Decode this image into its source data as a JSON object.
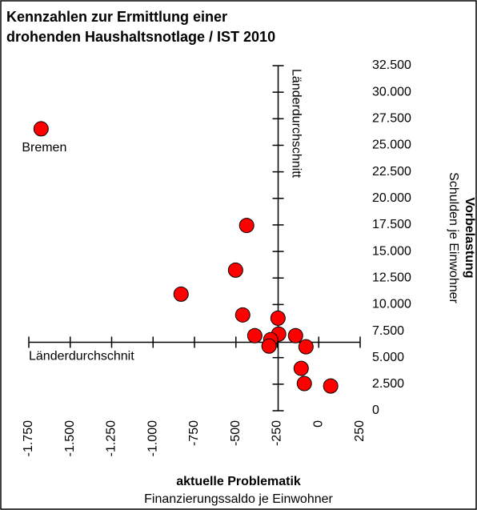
{
  "chart_data": {
    "type": "scatter",
    "title": [
      "Kennzahlen zur Ermittlung einer",
      "drohenden Haushaltsnotlage / IST 2010"
    ],
    "x_label": [
      "aktuelle Problematik",
      "Finanzierungssaldo je Einwohner"
    ],
    "y_label": [
      "Vorbelastung",
      "Schulden je Einwohner"
    ],
    "x": [
      -1676,
      -435,
      -502,
      -831,
      -459,
      -246,
      -386,
      -242,
      -290,
      -140,
      -77,
      -300,
      -106,
      -87,
      72
    ],
    "y": [
      26550,
      17450,
      13240,
      10980,
      9025,
      8720,
      7070,
      7220,
      6690,
      7070,
      6020,
      6090,
      3990,
      2560,
      2330
    ],
    "color": "#ff0000",
    "annotations": [
      {
        "text": "Bremen",
        "point": 0
      }
    ],
    "reference_lines": [
      {
        "axis": "x",
        "value": -245,
        "label": "Länderdurchschnitt"
      },
      {
        "axis": "y",
        "value": 6450,
        "label": "Länderdurchschnit"
      }
    ],
    "xlim": [
      -1750,
      250
    ],
    "ylim": [
      0,
      32500
    ],
    "xticks": [
      {
        "value": -1750,
        "label": "-1.750"
      },
      {
        "value": -1500,
        "label": "-1.500"
      },
      {
        "value": -1250,
        "label": "-1.250"
      },
      {
        "value": -1000,
        "label": "-1.000"
      },
      -750,
      -500,
      -250,
      0,
      250
    ],
    "yticks": [
      0,
      {
        "value": 2500,
        "label": "2.500"
      },
      {
        "value": 5000,
        "label": "5.000"
      },
      {
        "value": 7500,
        "label": "7.500"
      },
      {
        "value": 10000,
        "label": "10.000"
      },
      {
        "value": 12500,
        "label": "12.500"
      },
      {
        "value": 15000,
        "label": "15.000"
      },
      {
        "value": 17500,
        "label": "17.500"
      },
      {
        "value": 20000,
        "label": "20.000"
      },
      {
        "value": 22500,
        "label": "22.500"
      },
      {
        "value": 25000,
        "label": "25.000"
      },
      {
        "value": 27500,
        "label": "27.500"
      },
      {
        "value": 30000,
        "label": "30.000"
      },
      {
        "value": 32500,
        "label": "32.500"
      }
    ]
  }
}
